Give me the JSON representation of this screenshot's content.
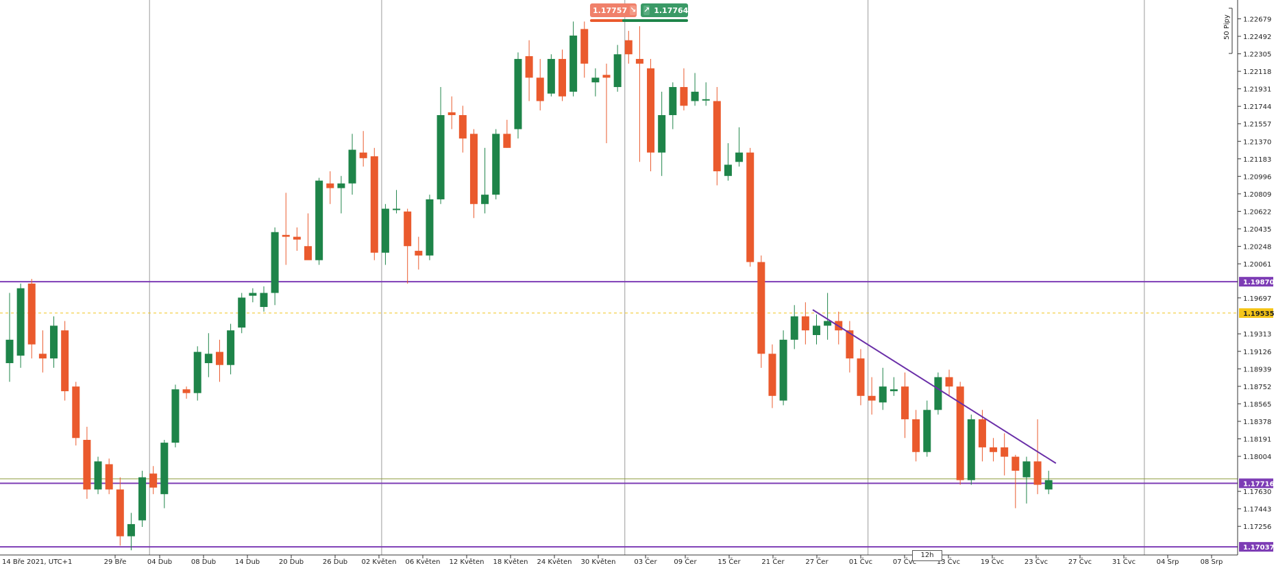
{
  "chart_data": {
    "type": "candlestick",
    "symbol_info": {
      "timezone_label": "14 Bře 2021, UTC+1",
      "timeframe": "12h",
      "pip_scale_label": "50 Pipy"
    },
    "trade_panel": {
      "sell_price": "1.17757",
      "buy_price": "1.17764",
      "sell_icon": "arrow-down-right-icon",
      "buy_icon": "arrow-up-right-icon"
    },
    "y_axis": {
      "min": 1.1695,
      "max": 1.2288,
      "tick_labels": [
        "1.22679",
        "1.22492",
        "1.22305",
        "1.22118",
        "1.21931",
        "1.21744",
        "1.21557",
        "1.21370",
        "1.21183",
        "1.20996",
        "1.20809",
        "1.20622",
        "1.20435",
        "1.20248",
        "1.20061",
        "1.19697",
        "1.19313",
        "1.19126",
        "1.18939",
        "1.18752",
        "1.18565",
        "1.18378",
        "1.18191",
        "1.18004",
        "1.17630",
        "1.17443",
        "1.17256"
      ]
    },
    "x_axis": {
      "tick_labels": [
        "29 Bře",
        "04 Dub",
        "08 Dub",
        "14 Dub",
        "20 Dub",
        "26 Dub",
        "02 Květen",
        "06 Květen",
        "12 Květen",
        "18 Květen",
        "24 Květen",
        "30 Květen",
        "03 Čer",
        "09 Čer",
        "15 Čer",
        "21 Čer",
        "27 Čer",
        "01 Čvc",
        "07 Čvc",
        "13 Čvc",
        "19 Čvc",
        "23 Čvc",
        "27 Čvc",
        "31 Čvc",
        "04 Srp",
        "08 Srp"
      ],
      "total_slots": 114,
      "vertical_separators_at_slot": [
        13,
        34,
        56,
        78,
        103
      ]
    },
    "price_levels": [
      {
        "label": "1.19870",
        "value": 1.1987,
        "color": "#7d3cb5",
        "style": "solid"
      },
      {
        "label": "1.19535",
        "value": 1.19535,
        "color": "#f0c419",
        "style": "dashed"
      },
      {
        "label": "1.17716",
        "value": 1.17716,
        "color": "#7d3cb5",
        "style": "solid"
      },
      {
        "label": "1.17037",
        "value": 1.17037,
        "color": "#7d3cb5",
        "style": "solid"
      }
    ],
    "current_price_line": {
      "value": 1.17764,
      "color": "#8c9a3a"
    },
    "trendline": {
      "start": {
        "slot": 73,
        "price": 1.1957
      },
      "end": {
        "slot": 95,
        "price": 1.1793
      },
      "color": "#6a2fa8"
    },
    "colors": {
      "bull": "#1e8449",
      "bear": "#ea5a2d",
      "grid": "#9a9a9a"
    },
    "candles": [
      [
        1.19,
        1.1975,
        1.188,
        1.1925
      ],
      [
        1.1908,
        1.1985,
        1.1895,
        1.198
      ],
      [
        1.1985,
        1.199,
        1.1905,
        1.192
      ],
      [
        1.191,
        1.1935,
        1.189,
        1.1905
      ],
      [
        1.1905,
        1.195,
        1.1895,
        1.194
      ],
      [
        1.1935,
        1.1945,
        1.186,
        1.187
      ],
      [
        1.1875,
        1.188,
        1.1812,
        1.182
      ],
      [
        1.1818,
        1.1832,
        1.1755,
        1.1765
      ],
      [
        1.1765,
        1.18,
        1.176,
        1.1795
      ],
      [
        1.1792,
        1.1798,
        1.176,
        1.1765
      ],
      [
        1.1765,
        1.1778,
        1.1705,
        1.1715
      ],
      [
        1.1715,
        1.174,
        1.17,
        1.1728
      ],
      [
        1.1732,
        1.1785,
        1.1725,
        1.1778
      ],
      [
        1.1782,
        1.179,
        1.176,
        1.1767
      ],
      [
        1.176,
        1.1818,
        1.1745,
        1.1815
      ],
      [
        1.1815,
        1.1877,
        1.181,
        1.1872
      ],
      [
        1.1872,
        1.1875,
        1.1862,
        1.1868
      ],
      [
        1.1868,
        1.1918,
        1.186,
        1.1912
      ],
      [
        1.19,
        1.1932,
        1.1885,
        1.191
      ],
      [
        1.1912,
        1.1925,
        1.188,
        1.1898
      ],
      [
        1.1898,
        1.1942,
        1.1888,
        1.1935
      ],
      [
        1.1938,
        1.1975,
        1.1932,
        1.197
      ],
      [
        1.1972,
        1.198,
        1.1965,
        1.1975
      ],
      [
        1.196,
        1.1982,
        1.1955,
        1.1975
      ],
      [
        1.1975,
        1.2045,
        1.1962,
        1.204
      ],
      [
        1.2037,
        1.2082,
        1.2005,
        1.2035
      ],
      [
        1.2035,
        1.2045,
        1.202,
        1.2032
      ],
      [
        1.2025,
        1.206,
        1.2012,
        1.201
      ],
      [
        1.201,
        1.2098,
        1.2005,
        1.2095
      ],
      [
        1.2092,
        1.2105,
        1.207,
        1.2087
      ],
      [
        1.2087,
        1.21,
        1.206,
        1.2092
      ],
      [
        1.2092,
        1.2145,
        1.208,
        1.2128
      ],
      [
        1.2125,
        1.2148,
        1.211,
        1.2119
      ],
      [
        1.2121,
        1.213,
        1.201,
        1.2018
      ],
      [
        1.2018,
        1.207,
        1.2005,
        1.2065
      ],
      [
        1.2065,
        1.2085,
        1.206,
        1.2065
      ],
      [
        1.2062,
        1.2065,
        1.1985,
        1.2025
      ],
      [
        1.202,
        1.2035,
        1.2,
        1.2015
      ],
      [
        1.2015,
        1.208,
        1.201,
        1.2075
      ],
      [
        1.2075,
        1.2195,
        1.207,
        1.2165
      ],
      [
        1.2168,
        1.2185,
        1.215,
        1.2165
      ],
      [
        1.2165,
        1.2175,
        1.2125,
        1.214
      ],
      [
        1.2145,
        1.215,
        1.2055,
        1.207
      ],
      [
        1.207,
        1.213,
        1.206,
        1.208
      ],
      [
        1.208,
        1.215,
        1.2075,
        1.2145
      ],
      [
        1.2145,
        1.216,
        1.213,
        1.213
      ],
      [
        1.215,
        1.2232,
        1.214,
        1.2225
      ],
      [
        1.2228,
        1.2245,
        1.218,
        1.2205
      ],
      [
        1.2205,
        1.2225,
        1.217,
        1.218
      ],
      [
        1.2188,
        1.223,
        1.2185,
        1.2225
      ],
      [
        1.2225,
        1.2235,
        1.218,
        1.2185
      ],
      [
        1.219,
        1.2265,
        1.2185,
        1.225
      ],
      [
        1.2257,
        1.2265,
        1.2205,
        1.222
      ],
      [
        1.22,
        1.2215,
        1.2185,
        1.2205
      ],
      [
        1.2208,
        1.222,
        1.2135,
        1.2205
      ],
      [
        1.2195,
        1.224,
        1.219,
        1.223
      ],
      [
        1.2245,
        1.2255,
        1.222,
        1.223
      ],
      [
        1.2225,
        1.226,
        1.2115,
        1.222
      ],
      [
        1.2215,
        1.2225,
        1.2105,
        1.2125
      ],
      [
        1.2125,
        1.219,
        1.21,
        1.2165
      ],
      [
        1.2165,
        1.22,
        1.215,
        1.2195
      ],
      [
        1.2195,
        1.2215,
        1.217,
        1.2175
      ],
      [
        1.218,
        1.221,
        1.2175,
        1.219
      ],
      [
        1.2182,
        1.22,
        1.2175,
        1.2182
      ],
      [
        1.218,
        1.2195,
        1.209,
        1.2105
      ],
      [
        1.21,
        1.2135,
        1.2095,
        1.2112
      ],
      [
        1.2115,
        1.2152,
        1.211,
        1.2125
      ],
      [
        1.2125,
        1.213,
        1.2003,
        1.2008
      ],
      [
        1.2008,
        1.2015,
        1.1895,
        1.191
      ],
      [
        1.191,
        1.192,
        1.1852,
        1.1865
      ],
      [
        1.186,
        1.1935,
        1.1855,
        1.1925
      ],
      [
        1.1925,
        1.1962,
        1.1915,
        1.195
      ],
      [
        1.195,
        1.1965,
        1.192,
        1.1935
      ],
      [
        1.193,
        1.1952,
        1.192,
        1.194
      ],
      [
        1.194,
        1.1975,
        1.1925,
        1.1945
      ],
      [
        1.1945,
        1.1955,
        1.192,
        1.1935
      ],
      [
        1.1935,
        1.1945,
        1.189,
        1.1905
      ],
      [
        1.1905,
        1.1915,
        1.1855,
        1.1865
      ],
      [
        1.1865,
        1.1885,
        1.1845,
        1.186
      ],
      [
        1.1858,
        1.1895,
        1.185,
        1.1875
      ],
      [
        1.187,
        1.1885,
        1.1865,
        1.1872
      ],
      [
        1.1875,
        1.189,
        1.182,
        1.184
      ],
      [
        1.184,
        1.185,
        1.1795,
        1.1805
      ],
      [
        1.1805,
        1.186,
        1.18,
        1.185
      ],
      [
        1.185,
        1.189,
        1.1845,
        1.1885
      ],
      [
        1.1885,
        1.1893,
        1.1865,
        1.1875
      ],
      [
        1.1875,
        1.188,
        1.177,
        1.1775
      ],
      [
        1.1775,
        1.1845,
        1.177,
        1.184
      ],
      [
        1.184,
        1.185,
        1.1795,
        1.181
      ],
      [
        1.181,
        1.182,
        1.1795,
        1.1805
      ],
      [
        1.181,
        1.1825,
        1.178,
        1.18
      ],
      [
        1.18,
        1.1802,
        1.1745,
        1.1785
      ],
      [
        1.1778,
        1.18,
        1.175,
        1.1795
      ],
      [
        1.1795,
        1.184,
        1.176,
        1.177
      ],
      [
        1.1765,
        1.1785,
        1.176,
        1.1775
      ]
    ]
  }
}
